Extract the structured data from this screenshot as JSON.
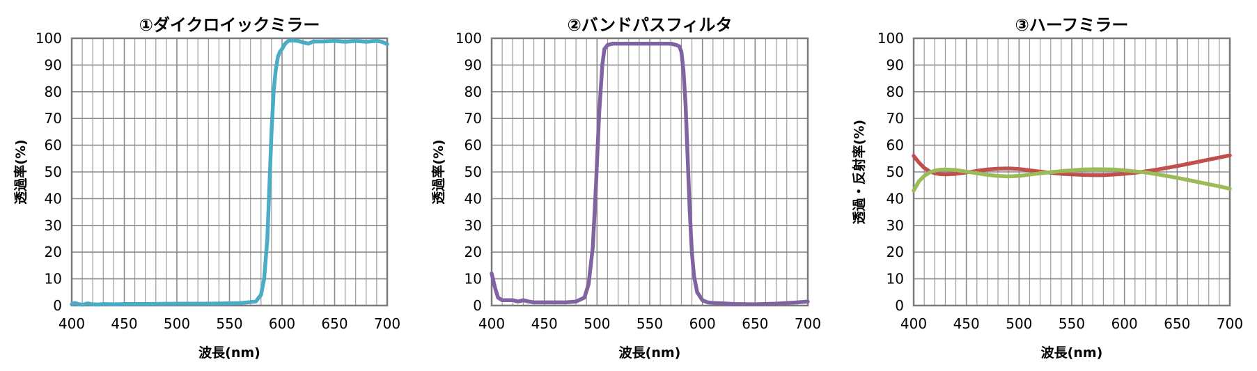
{
  "chart_data": [
    {
      "type": "line",
      "title": "①ダイクロイックミラー",
      "xlabel": "波長(nm)",
      "ylabel": "透過率(%)",
      "xlim": [
        400,
        700
      ],
      "ylim": [
        0,
        100
      ],
      "x_ticks": [
        "400",
        "450",
        "500",
        "550",
        "600",
        "650",
        "700"
      ],
      "y_ticks": [
        "0",
        "10",
        "20",
        "30",
        "40",
        "50",
        "60",
        "70",
        "80",
        "90",
        "100"
      ],
      "grid": true,
      "series": [
        {
          "color": "#4bacc6",
          "x": [
            400,
            403,
            406,
            410,
            415,
            420,
            425,
            430,
            440,
            450,
            470,
            500,
            530,
            560,
            575,
            580,
            583,
            586,
            588,
            590,
            592,
            594,
            596,
            598,
            600,
            603,
            606,
            610,
            615,
            620,
            625,
            630,
            640,
            650,
            660,
            670,
            680,
            690,
            695,
            700
          ],
          "y": [
            0.5,
            1.0,
            0.6,
            0.3,
            0.8,
            0.5,
            0.4,
            0.6,
            0.5,
            0.6,
            0.6,
            0.7,
            0.7,
            0.9,
            1.5,
            4,
            10,
            25,
            45,
            65,
            80,
            88,
            93,
            95,
            96,
            98,
            99,
            99.2,
            99,
            98.5,
            98,
            98.8,
            98.8,
            99,
            98.7,
            99,
            98.7,
            99,
            98.7,
            97.8
          ]
        }
      ]
    },
    {
      "type": "line",
      "title": "②バンドパスフィルタ",
      "xlabel": "波長(nm)",
      "ylabel": "透過率(%)",
      "xlim": [
        400,
        700
      ],
      "ylim": [
        0,
        100
      ],
      "x_ticks": [
        "400",
        "450",
        "500",
        "550",
        "600",
        "650",
        "700"
      ],
      "y_ticks": [
        "0",
        "10",
        "20",
        "30",
        "40",
        "50",
        "60",
        "70",
        "80",
        "90",
        "100"
      ],
      "grid": true,
      "series": [
        {
          "color": "#8064a2",
          "x": [
            400,
            403,
            406,
            410,
            415,
            420,
            425,
            430,
            435,
            440,
            450,
            460,
            470,
            480,
            488,
            492,
            496,
            499,
            502,
            505,
            507,
            510,
            515,
            525,
            550,
            570,
            575,
            578,
            580,
            582,
            584,
            586,
            588,
            590,
            592,
            595,
            600,
            605,
            610,
            620,
            630,
            650,
            670,
            690,
            700
          ],
          "y": [
            12,
            7,
            3,
            2,
            2,
            2,
            1.5,
            2,
            1.5,
            1.2,
            1.2,
            1.2,
            1.2,
            1.5,
            3,
            8,
            22,
            45,
            72,
            90,
            96,
            97.5,
            98,
            98,
            98,
            98,
            97.5,
            97,
            95,
            88,
            75,
            55,
            35,
            20,
            11,
            5,
            2,
            1.2,
            1,
            0.8,
            0.6,
            0.5,
            0.7,
            1.2,
            1.5
          ]
        }
      ]
    },
    {
      "type": "line",
      "title": "③ハーフミラー",
      "xlabel": "波長(nm)",
      "ylabel": "透過・反射率(%)",
      "xlim": [
        400,
        700
      ],
      "ylim": [
        0,
        100
      ],
      "x_ticks": [
        "400",
        "450",
        "500",
        "550",
        "600",
        "650",
        "700"
      ],
      "y_ticks": [
        "0",
        "10",
        "20",
        "30",
        "40",
        "50",
        "60",
        "70",
        "80",
        "90",
        "100"
      ],
      "grid": true,
      "series": [
        {
          "color": "#c0504d",
          "x": [
            400,
            405,
            410,
            415,
            420,
            425,
            430,
            440,
            450,
            460,
            470,
            480,
            490,
            500,
            510,
            520,
            530,
            540,
            550,
            560,
            570,
            580,
            590,
            600,
            610,
            620,
            630,
            640,
            650,
            660,
            670,
            680,
            690,
            700
          ],
          "y": [
            56,
            53.5,
            51.5,
            50.2,
            49.5,
            49.2,
            49.1,
            49.3,
            49.8,
            50.4,
            50.9,
            51.2,
            51.3,
            51.1,
            50.6,
            50.1,
            49.7,
            49.3,
            49.1,
            48.9,
            48.8,
            48.8,
            49,
            49.3,
            49.7,
            50.2,
            50.8,
            51.5,
            52.2,
            53,
            53.8,
            54.6,
            55.4,
            56.2
          ]
        },
        {
          "color": "#9bbb59",
          "x": [
            400,
            405,
            410,
            415,
            420,
            425,
            430,
            440,
            450,
            460,
            470,
            480,
            490,
            500,
            510,
            520,
            530,
            540,
            550,
            560,
            570,
            580,
            590,
            600,
            610,
            620,
            630,
            640,
            650,
            660,
            670,
            680,
            690,
            700
          ],
          "y": [
            43,
            46.5,
            48.5,
            49.8,
            50.5,
            50.8,
            50.9,
            50.7,
            50.1,
            49.5,
            48.9,
            48.5,
            48.3,
            48.5,
            49,
            49.5,
            49.9,
            50.3,
            50.6,
            50.9,
            51,
            51,
            50.9,
            50.6,
            50.2,
            49.8,
            49.2,
            48.5,
            47.8,
            47,
            46.2,
            45.4,
            44.6,
            43.7
          ]
        }
      ]
    }
  ]
}
